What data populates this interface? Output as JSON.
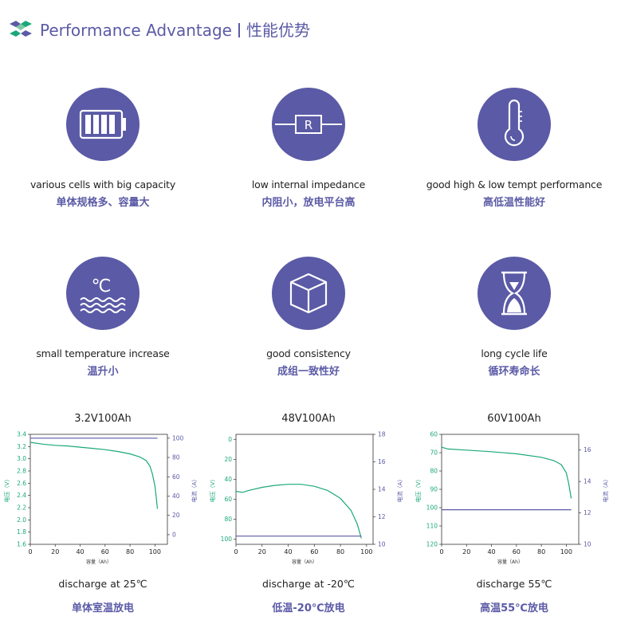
{
  "header": {
    "title_en": "Performance Advantage",
    "title_cn": "性能优势"
  },
  "colors": {
    "accent": "#5b5aa6",
    "voltage": "#1aa87a",
    "current": "#5b5aa6"
  },
  "features": [
    {
      "icon": "battery-icon",
      "en": "various cells with big capacity",
      "cn": "单体规格多、容量大"
    },
    {
      "icon": "resistor-icon",
      "en": "low internal impedance",
      "cn": "内阻小，放电平台高"
    },
    {
      "icon": "thermometer-icon",
      "en": "good high & low tempt performance",
      "cn": "高低温性能好"
    },
    {
      "icon": "celsius-waves-icon",
      "en": "small temperature increase",
      "cn": "温升小"
    },
    {
      "icon": "cube-icon",
      "en": "good consistency",
      "cn": "成组一致性好"
    },
    {
      "icon": "hourglass-icon",
      "en": "long cycle life",
      "cn": "循环寿命长"
    }
  ],
  "icon_text": {
    "resistor_letter": "R",
    "celsius": "℃"
  },
  "chart_labels": {
    "xlabel": "容量（Ah）",
    "y_left": "电压（V）",
    "y_right": "电流（A）"
  },
  "chart_data": [
    {
      "type": "line",
      "title": "3.2V100Ah",
      "xlabel": "容量（Ah）",
      "ylabel": "电压（V）",
      "y2label": "电流（A）",
      "xlim": [
        0,
        110
      ],
      "ylim": [
        1.6,
        3.4
      ],
      "y2lim": [
        -10,
        104
      ],
      "yreverse": false,
      "xticks": [
        0,
        20,
        40,
        60,
        80,
        100
      ],
      "yticks": [
        1.6,
        1.8,
        2.0,
        2.2,
        2.4,
        2.6,
        2.8,
        3.0,
        3.2,
        3.4
      ],
      "ytick_labels": [
        "1.6",
        "1.8",
        "2.0",
        "2.2",
        "2.4",
        "2.6",
        "2.8",
        "3.0",
        "3.2",
        "3.4"
      ],
      "y2ticks": [
        0,
        20,
        40,
        60,
        80,
        100
      ],
      "series": [
        {
          "name": "电压（V）",
          "axis": "left",
          "x": [
            0,
            10,
            20,
            30,
            40,
            50,
            60,
            70,
            80,
            88,
            93,
            96,
            98,
            100,
            101,
            102
          ],
          "values": [
            3.27,
            3.24,
            3.22,
            3.21,
            3.19,
            3.17,
            3.15,
            3.12,
            3.08,
            3.03,
            2.97,
            2.88,
            2.75,
            2.55,
            2.38,
            2.18
          ]
        },
        {
          "name": "电流（A）",
          "axis": "right",
          "x": [
            0,
            102
          ],
          "values": [
            100,
            100
          ]
        }
      ],
      "caption_en": "discharge at 25℃",
      "caption_cn": "单体室温放电"
    },
    {
      "type": "line",
      "title": "48V100Ah",
      "xlabel": "容量（Ah）",
      "ylabel": "电压（V）",
      "y2label": "电流（A）",
      "xlim": [
        0,
        105
      ],
      "ylim": [
        -5,
        105
      ],
      "y2lim": [
        10,
        18
      ],
      "yreverse": true,
      "xticks": [
        0,
        20,
        40,
        60,
        80,
        100
      ],
      "yticks": [
        0,
        20,
        40,
        60,
        80,
        100
      ],
      "ytick_labels": [
        "0",
        "20",
        "40",
        "60",
        "80",
        "100"
      ],
      "y2ticks": [
        10,
        12,
        14,
        16,
        18
      ],
      "series": [
        {
          "name": "电压（V）",
          "axis": "left",
          "x": [
            0,
            5,
            10,
            20,
            30,
            40,
            50,
            60,
            70,
            80,
            88,
            93,
            96
          ],
          "values": [
            52,
            53,
            51,
            48,
            46,
            45,
            45,
            47,
            51,
            59,
            71,
            85,
            99
          ]
        },
        {
          "name": "电流（A）",
          "axis": "right",
          "x": [
            0,
            96
          ],
          "values": [
            10.6,
            10.6
          ]
        }
      ],
      "caption_en": "discharge at -20℃",
      "caption_cn": "低温-20℃放电"
    },
    {
      "type": "line",
      "title": "60V100Ah",
      "xlabel": "容量（Ah）",
      "ylabel": "电压（V）",
      "y2label": "电流（A）",
      "xlim": [
        0,
        110
      ],
      "ylim": [
        60,
        120
      ],
      "y2lim": [
        10,
        17
      ],
      "yreverse": true,
      "xticks": [
        0,
        20,
        40,
        60,
        80,
        100
      ],
      "yticks": [
        60,
        70,
        80,
        90,
        100,
        110,
        120
      ],
      "ytick_labels": [
        "60",
        "70",
        "80",
        "90",
        "100",
        "110",
        "120"
      ],
      "y2ticks": [
        10,
        12,
        14,
        16
      ],
      "series": [
        {
          "name": "电压（V）",
          "axis": "left",
          "x": [
            0,
            5,
            20,
            40,
            60,
            80,
            90,
            96,
            100,
            102,
            104
          ],
          "values": [
            67,
            68,
            68.6,
            69.5,
            70.6,
            72.5,
            74.3,
            76.5,
            81,
            87,
            95
          ]
        },
        {
          "name": "电流（A）",
          "axis": "right",
          "x": [
            0,
            104
          ],
          "values": [
            12.2,
            12.2
          ]
        }
      ],
      "caption_en": "discharge 55℃",
      "caption_cn": "高温55℃放电"
    }
  ]
}
